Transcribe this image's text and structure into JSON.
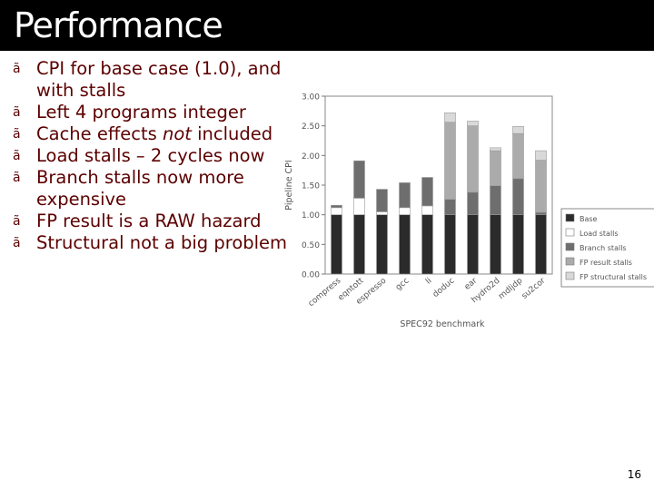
{
  "slide": {
    "title": "Performance",
    "bullet_marker": "ã",
    "bullets": [
      {
        "text": "CPI for base case (1.0), and with stalls"
      },
      {
        "text": "Left 4 programs integer"
      },
      {
        "before": "Cache effects ",
        "em": "not",
        "after": " included"
      },
      {
        "text": "Load stalls – 2 cycles now"
      },
      {
        "text": "Branch stalls now more expensive"
      },
      {
        "text": "FP result is a RAW hazard"
      },
      {
        "text": "Structural not a big problem"
      }
    ],
    "page_number": "16"
  },
  "chart_data": {
    "type": "bar",
    "stacked": true,
    "ylabel": "Pipeline CPI",
    "xlabel": "SPEC92 benchmark",
    "ylim": [
      0,
      3.0
    ],
    "yticks": [
      "0.00",
      "0.50",
      "1.00",
      "1.50",
      "2.00",
      "2.50",
      "3.00"
    ],
    "grid": false,
    "legend": "right",
    "categories": [
      "compress",
      "eqntott",
      "espresso",
      "gcc",
      "li",
      "doduc",
      "ear",
      "hydro2d",
      "mdljdp",
      "su2cor"
    ],
    "series": [
      {
        "name": "Base",
        "color": "#2b2b2b",
        "values": [
          1.0,
          1.0,
          1.0,
          1.0,
          1.0,
          1.0,
          1.0,
          1.0,
          1.0,
          1.0
        ]
      },
      {
        "name": "Load stalls",
        "color": "#ffffff",
        "values": [
          0.12,
          0.28,
          0.05,
          0.12,
          0.15,
          0.0,
          0.0,
          0.0,
          0.0,
          0.0
        ]
      },
      {
        "name": "Branch stalls",
        "color": "#6e6e6e",
        "values": [
          0.04,
          0.63,
          0.38,
          0.42,
          0.48,
          0.26,
          0.38,
          0.49,
          0.61,
          0.04
        ]
      },
      {
        "name": "FP result stalls",
        "color": "#ababab",
        "values": [
          0.0,
          0.0,
          0.0,
          0.0,
          0.0,
          1.3,
          1.12,
          0.59,
          0.76,
          0.88
        ]
      },
      {
        "name": "FP structural stalls",
        "color": "#d9d9d9",
        "values": [
          0.0,
          0.0,
          0.0,
          0.0,
          0.0,
          0.16,
          0.08,
          0.05,
          0.12,
          0.16
        ]
      }
    ]
  }
}
